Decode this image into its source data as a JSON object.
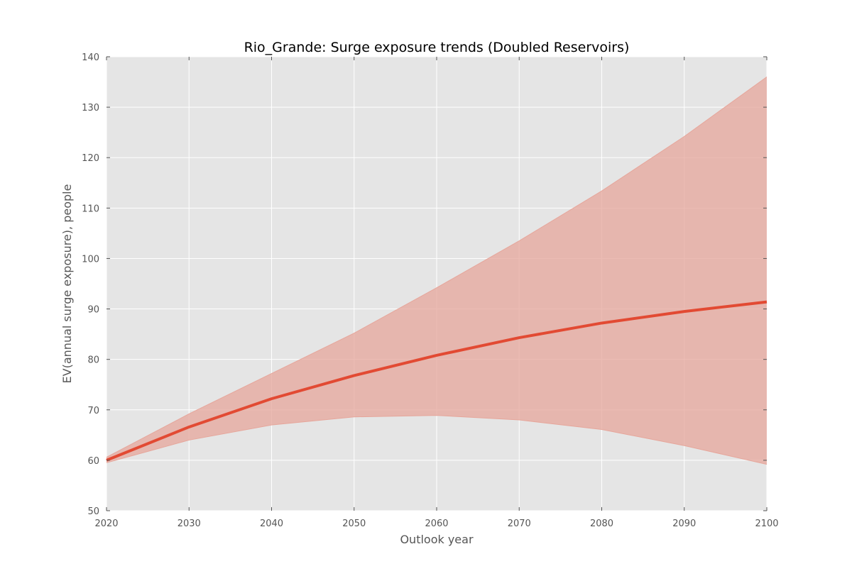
{
  "chart_data": {
    "type": "line",
    "title": "Rio_Grande: Surge exposure trends (Doubled Reservoirs)",
    "xlabel": "Outlook year",
    "ylabel": "EV(annual surge exposure), people",
    "xlim": [
      2020,
      2100
    ],
    "ylim": [
      50,
      140
    ],
    "x_ticks": [
      2020,
      2030,
      2040,
      2050,
      2060,
      2070,
      2080,
      2090,
      2100
    ],
    "y_ticks": [
      50,
      60,
      70,
      80,
      90,
      100,
      110,
      120,
      130,
      140
    ],
    "grid": true,
    "x": [
      2020,
      2030,
      2040,
      2050,
      2060,
      2070,
      2080,
      2090,
      2100
    ],
    "series": [
      {
        "values": [
          60.0,
          66.6,
          72.2,
          76.8,
          80.8,
          84.3,
          87.2,
          89.5,
          91.4
        ],
        "band_lower": [
          59.5,
          64.0,
          67.0,
          68.6,
          68.9,
          68.0,
          66.1,
          62.9,
          59.2
        ],
        "band_upper": [
          60.6,
          69.2,
          77.2,
          85.2,
          94.2,
          103.5,
          113.4,
          124.2,
          136.0
        ],
        "color": "#e24a33",
        "band_color": "#e6a69b"
      }
    ],
    "plot_background": "#e5e5e5",
    "grid_color": "#ffffff"
  }
}
